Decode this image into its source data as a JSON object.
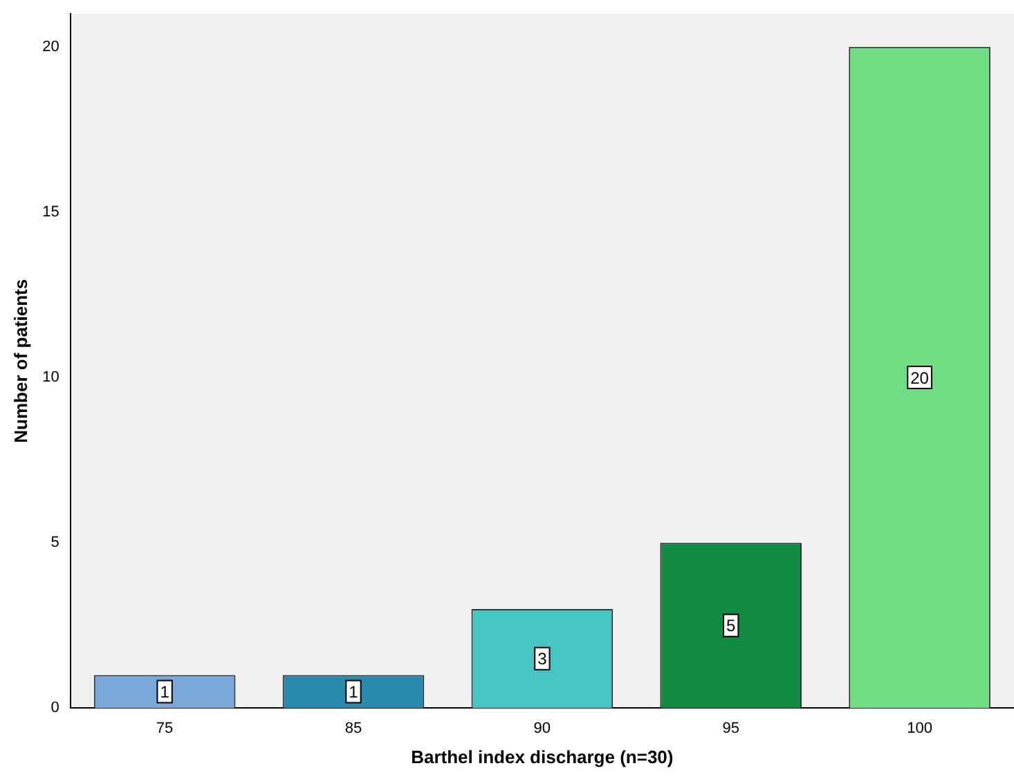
{
  "chart_data": {
    "type": "bar",
    "xlabel": "Barthel index discharge (n=30)",
    "ylabel": "Number of patients",
    "categories": [
      "75",
      "85",
      "90",
      "95",
      "100"
    ],
    "values": [
      1,
      1,
      3,
      5,
      20
    ],
    "colors": [
      "#7ba7d8",
      "#2b8bae",
      "#47c4c4",
      "#118b44",
      "#70dc84"
    ],
    "ylim": [
      0,
      21
    ],
    "yticks": [
      0,
      5,
      10,
      15,
      20
    ],
    "grid": false,
    "data_labels": true
  }
}
